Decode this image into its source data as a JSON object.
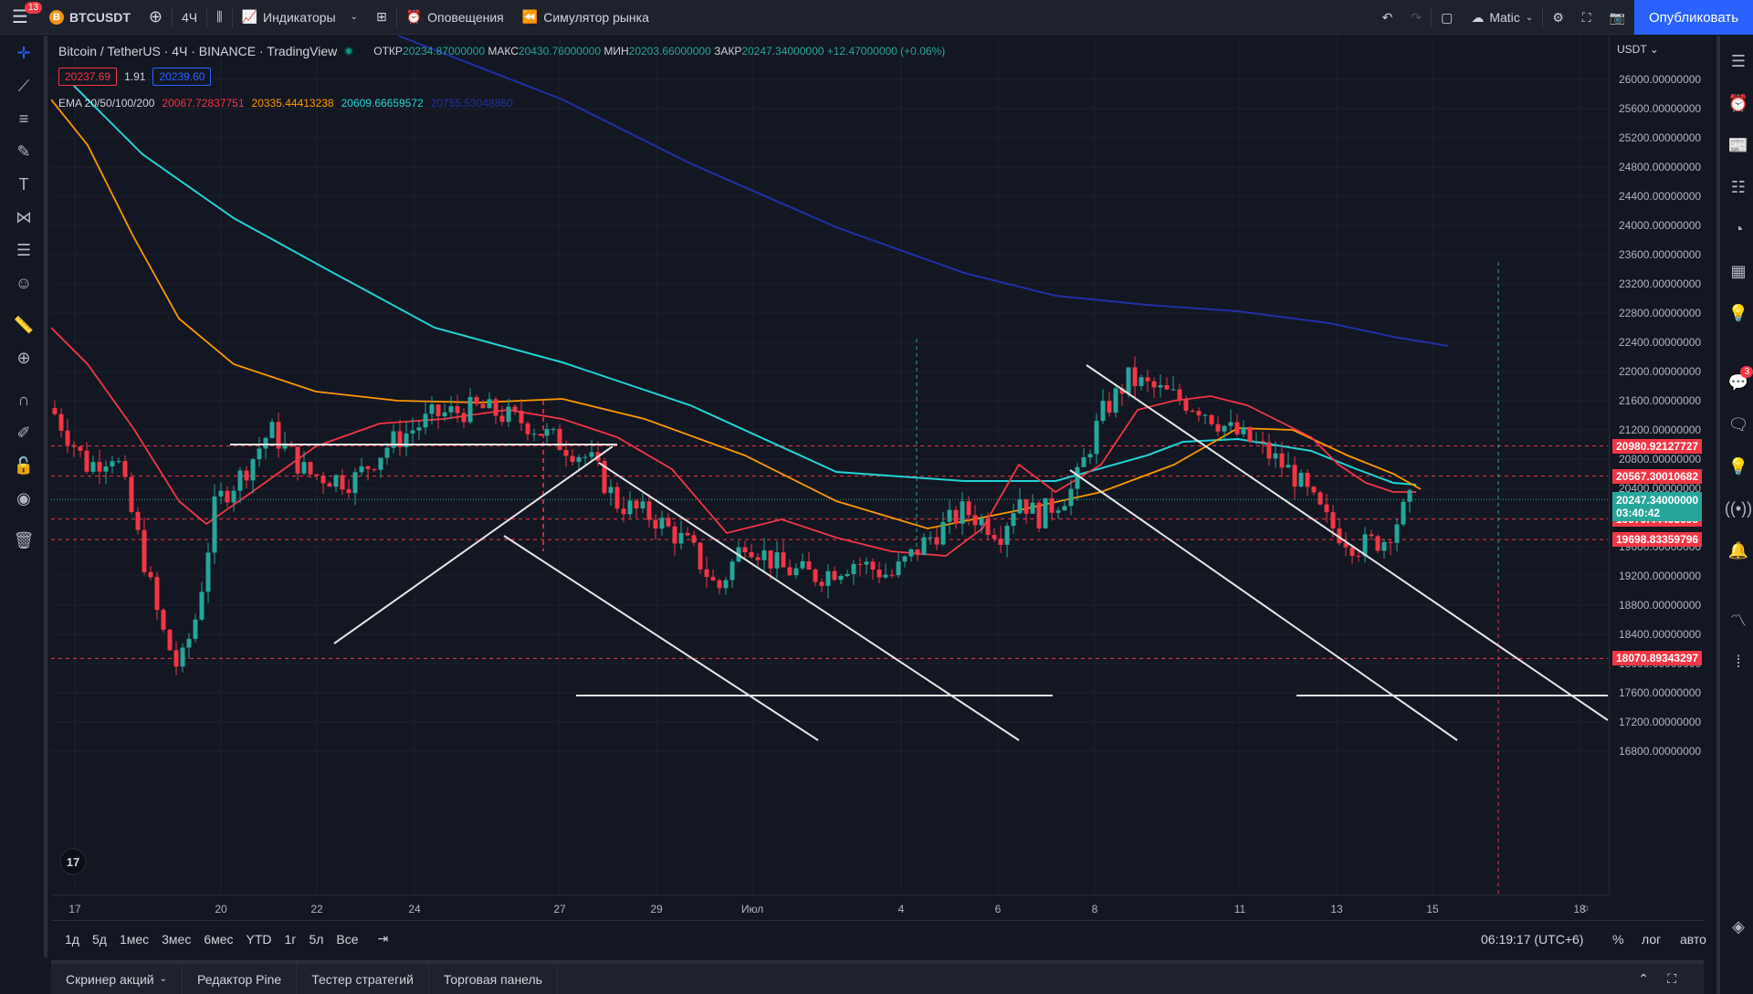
{
  "topbar": {
    "menu_badge": "13",
    "coin_letter": "B",
    "symbol": "BTCUSDT",
    "interval": "4Ч",
    "indicators": "Индикаторы",
    "alerts": "Оповещения",
    "replay": "Симулятор рынка",
    "layout_name": "Matic",
    "publish": "Опубликовать"
  },
  "legend": {
    "title": "Bitcoin / TetherUS · 4Ч · BINANCE · TradingView",
    "open_label": "ОТКР",
    "open": "20234.87000000",
    "high_label": "МАКС",
    "high": "20430.76000000",
    "low_label": "МИН",
    "low": "20203.66000000",
    "close_label": "ЗАКР",
    "close": "20247.34000000",
    "change": "+12.47000000 (+0.06%)",
    "bid": "20237.69",
    "spread": "1.91",
    "ask": "20239.60"
  },
  "ema": {
    "label": "EMA 20/50/100/200",
    "v20": "20067.72837751",
    "c20": "#f23645",
    "v50": "20335.44413238",
    "c50": "#ff9800",
    "v100": "20609.66659572",
    "c100": "#22d3d3",
    "v200": "20755.53048860",
    "c200": "#2130a8"
  },
  "price_axis": {
    "currency": "USDT",
    "ticks": [
      "26000.00000000",
      "25600.00000000",
      "25200.00000000",
      "24800.00000000",
      "24400.00000000",
      "24000.00000000",
      "23600.00000000",
      "23200.00000000",
      "22800.00000000",
      "22400.00000000",
      "22000.00000000",
      "21600.00000000",
      "21200.00000000",
      "20800.00000000",
      "20400.00000000",
      "19600.00000000",
      "19200.00000000",
      "18800.00000000",
      "18400.00000000",
      "18000.00000000",
      "17600.00000000",
      "17200.00000000",
      "16800.00000000"
    ],
    "levels": [
      "20980.92127727",
      "20567.30010682",
      "19979.44493693",
      "19698.83359796",
      "18070.89343297"
    ],
    "current_price": "20247.34000000",
    "countdown": "03:40:42"
  },
  "time_axis": [
    "17",
    "20",
    "22",
    "24",
    "27",
    "29",
    "Июл",
    "4",
    "6",
    "8",
    "11",
    "13",
    "15",
    "18"
  ],
  "bottom": {
    "ranges": [
      "1д",
      "5д",
      "1мес",
      "3мес",
      "6мес",
      "YTD",
      "1г",
      "5л",
      "Все"
    ],
    "clock": "06:19:17 (UTC+6)",
    "percent": "%",
    "log": "лог",
    "auto": "авто",
    "tabs": [
      "Скринер акций",
      "Редактор Pine",
      "Тестер стратегий",
      "Торговая панель"
    ]
  },
  "colors": {
    "up": "#26a69a",
    "down": "#f23645",
    "ema20": "#f23645",
    "ema50": "#ff9800",
    "ema100": "#22d3d3",
    "ema200": "#2130a8",
    "accent": "#2962ff"
  },
  "icons": [
    "menu-icon",
    "plus-icon",
    "bar-type-icon",
    "indicators-icon",
    "templates-icon",
    "alert-icon",
    "replay-icon",
    "undo-icon",
    "redo-icon",
    "rectangle-icon",
    "cloud-icon",
    "gear-icon",
    "fullscreen-icon",
    "camera-icon"
  ]
}
